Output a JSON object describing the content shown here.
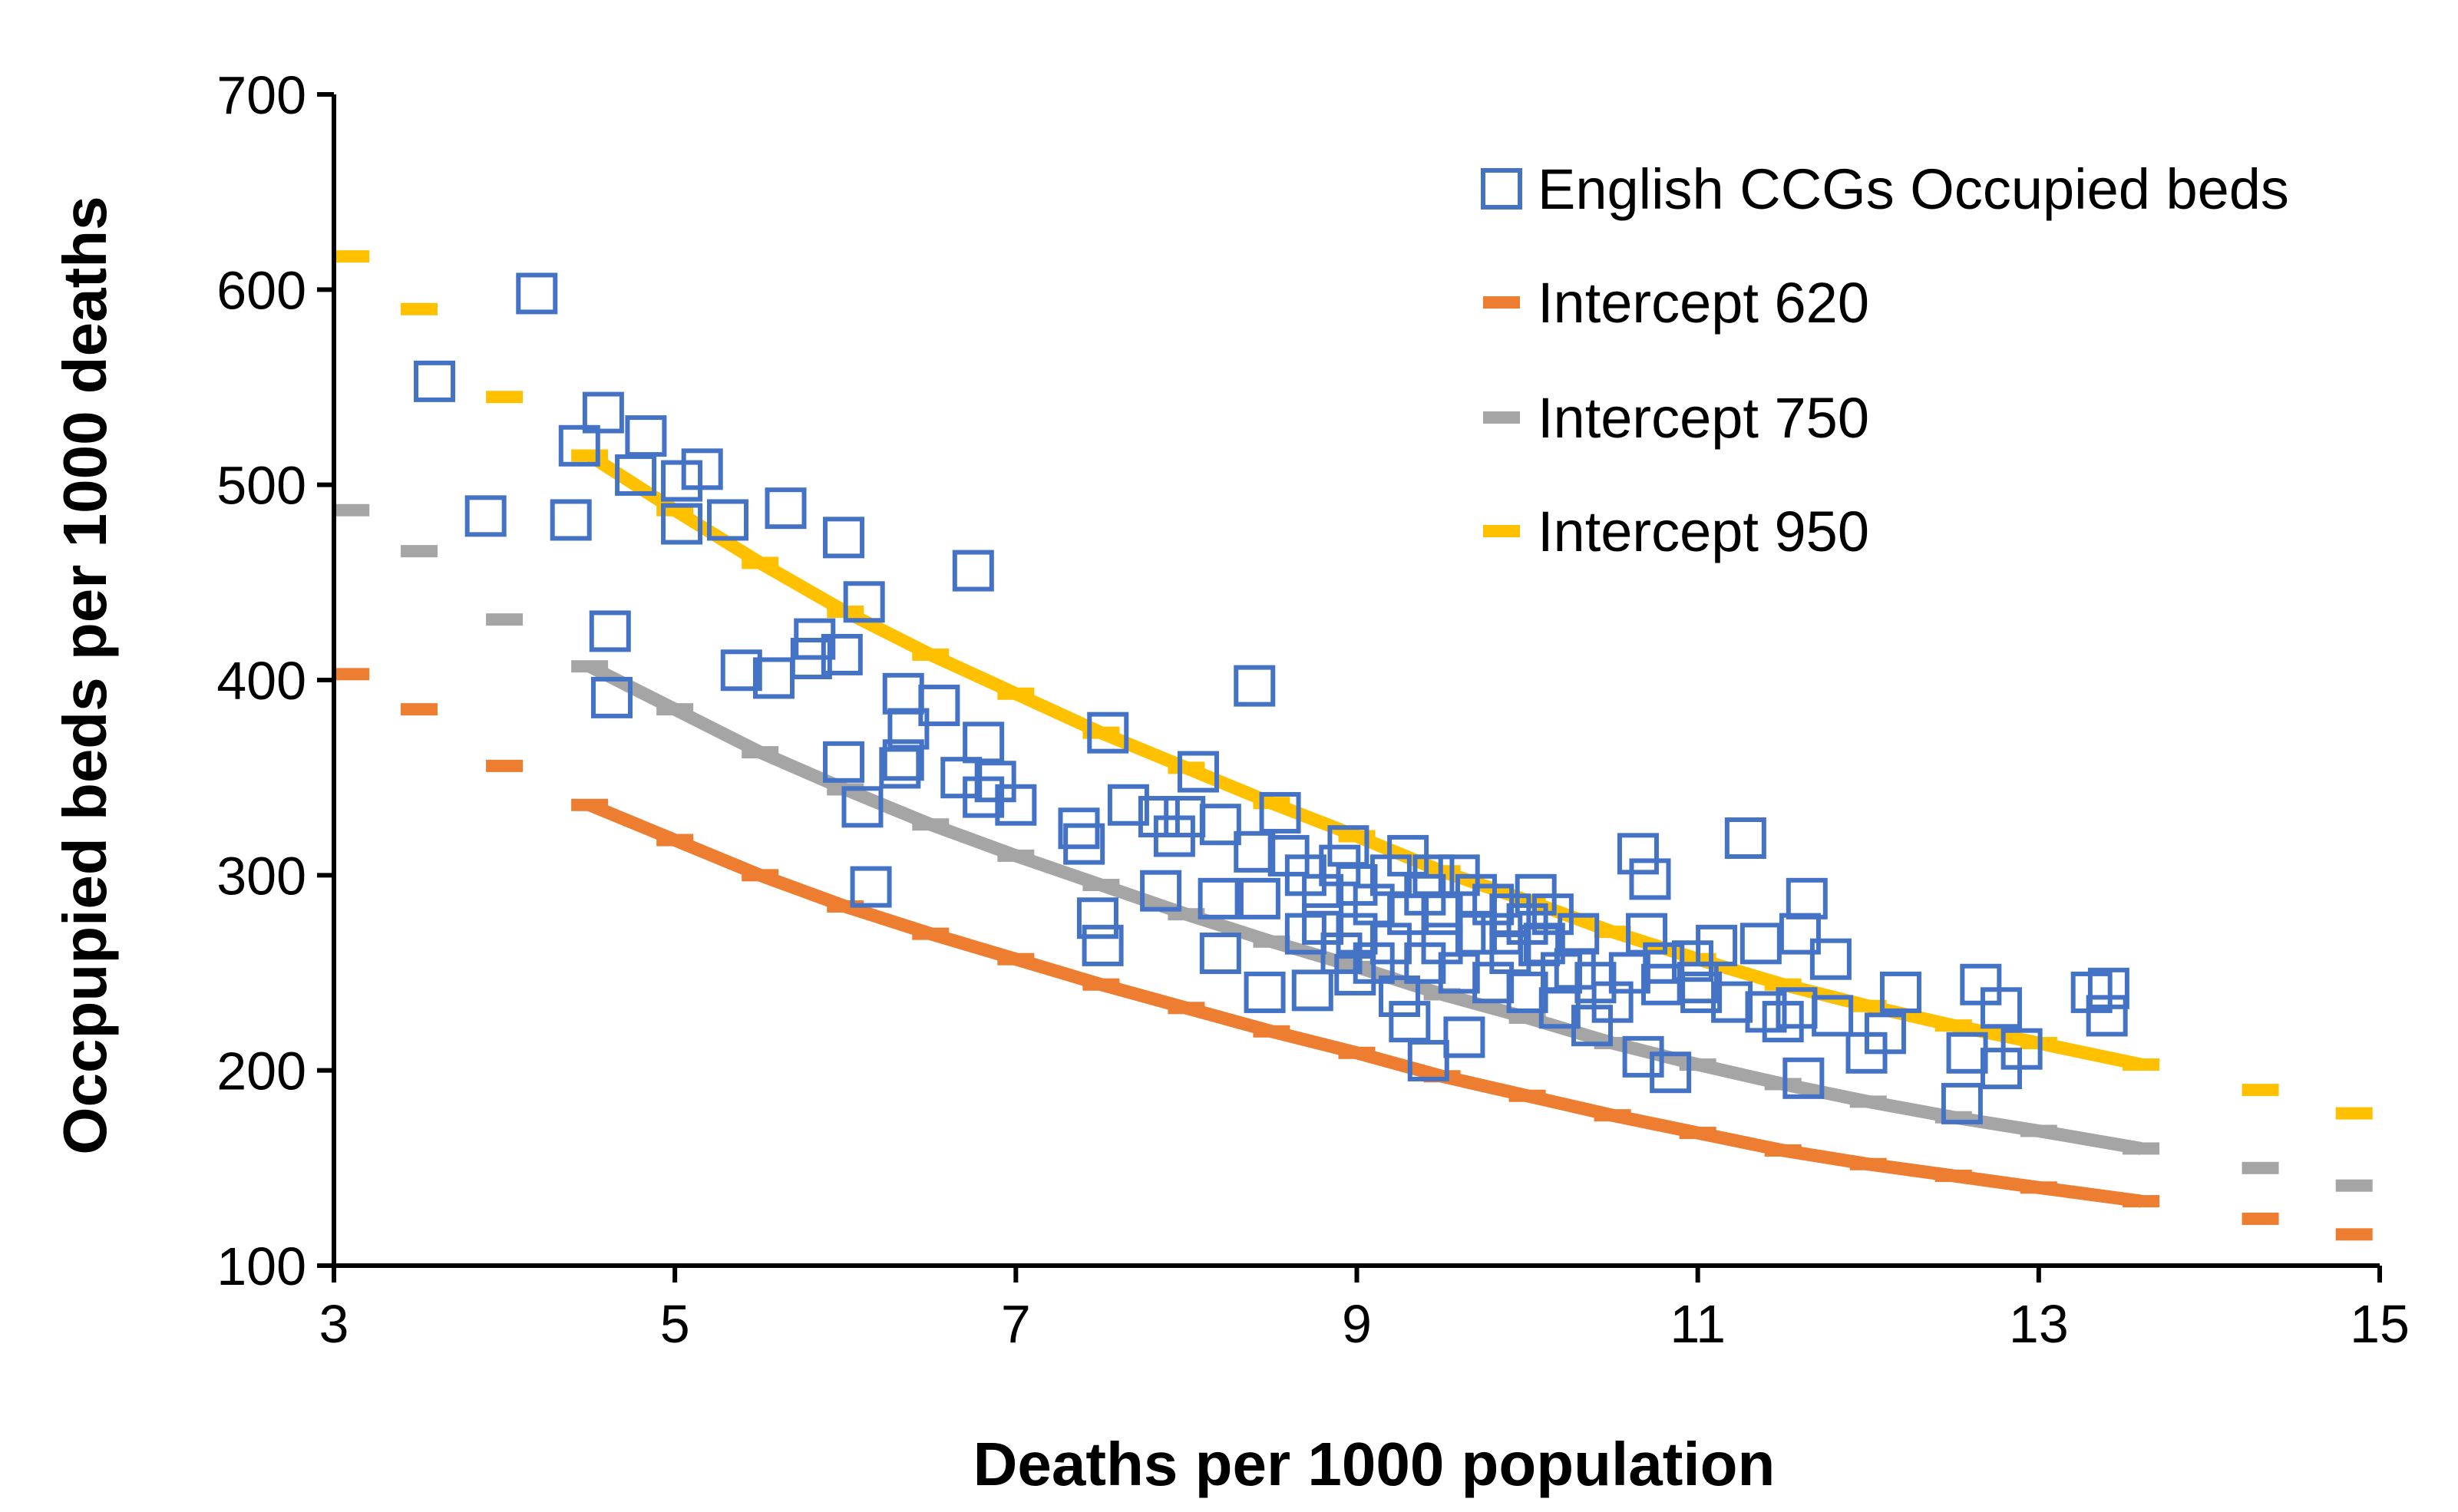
{
  "chart_data": {
    "type": "scatter",
    "title": "",
    "xlabel": "Deaths per 1000 population",
    "ylabel": "Occpupied beds per 1000 deaths",
    "xlim": [
      3,
      15
    ],
    "ylim": [
      100,
      700
    ],
    "xticks": [
      3,
      5,
      7,
      9,
      11,
      13,
      15
    ],
    "yticks": [
      100,
      200,
      300,
      400,
      500,
      600,
      700
    ],
    "grid": false,
    "legend_position": "top-right",
    "colors": {
      "scatter": "#4472C4",
      "i620": "#ED7D31",
      "i750": "#A5A5A5",
      "i950": "#FFC000"
    },
    "scatter": {
      "name": "English CCGs Occupied beds",
      "points": [
        [
          4.19,
          598
        ],
        [
          3.59,
          553
        ],
        [
          3.89,
          484
        ],
        [
          4.39,
          482
        ],
        [
          4.44,
          520
        ],
        [
          4.58,
          537
        ],
        [
          4.83,
          525
        ],
        [
          4.77,
          505
        ],
        [
          5.04,
          502
        ],
        [
          5.16,
          508
        ],
        [
          5.04,
          480
        ],
        [
          5.31,
          482
        ],
        [
          5.65,
          488
        ],
        [
          5.99,
          473
        ],
        [
          4.62,
          425
        ],
        [
          4.63,
          391
        ],
        [
          5.39,
          405
        ],
        [
          5.58,
          401
        ],
        [
          5.82,
          421
        ],
        [
          5.8,
          411
        ],
        [
          5.98,
          413
        ],
        [
          6.11,
          440
        ],
        [
          6.75,
          456
        ],
        [
          6.34,
          393
        ],
        [
          6.55,
          387
        ],
        [
          6.37,
          375
        ],
        [
          6.34,
          359
        ],
        [
          6.32,
          355
        ],
        [
          6.68,
          350
        ],
        [
          6.81,
          368
        ],
        [
          6.88,
          348
        ],
        [
          6.81,
          340
        ],
        [
          7.0,
          336
        ],
        [
          5.99,
          358
        ],
        [
          6.1,
          335
        ],
        [
          6.15,
          294
        ],
        [
          7.37,
          324
        ],
        [
          7.4,
          316
        ],
        [
          7.48,
          278
        ],
        [
          7.51,
          264
        ],
        [
          7.54,
          373
        ],
        [
          7.66,
          336
        ],
        [
          7.84,
          330
        ],
        [
          8.07,
          353
        ],
        [
          7.99,
          330
        ],
        [
          7.93,
          320
        ],
        [
          7.85,
          292
        ],
        [
          8.2,
          326
        ],
        [
          8.19,
          288
        ],
        [
          8.2,
          260
        ],
        [
          8.4,
          397
        ],
        [
          8.55,
          332
        ],
        [
          8.4,
          312
        ],
        [
          8.43,
          288
        ],
        [
          8.46,
          240
        ],
        [
          10.65,
          311
        ],
        [
          10.72,
          298
        ],
        [
          11.28,
          319
        ],
        [
          11.37,
          265
        ],
        [
          11.64,
          288
        ],
        [
          11.78,
          257
        ],
        [
          11.6,
          270
        ],
        [
          11.58,
          232
        ],
        [
          11.62,
          196
        ],
        [
          11.99,
          209
        ],
        [
          12.19,
          240
        ],
        [
          12.1,
          219
        ],
        [
          12.66,
          244
        ],
        [
          12.78,
          232
        ],
        [
          12.58,
          209
        ],
        [
          12.55,
          183
        ],
        [
          12.78,
          201
        ],
        [
          12.9,
          211
        ],
        [
          13.31,
          240
        ],
        [
          13.4,
          228
        ],
        [
          13.41,
          242
        ],
        [
          11.79,
          228
        ],
        [
          10.84,
          199
        ],
        [
          10.68,
          207
        ],
        [
          10.79,
          244
        ],
        [
          11.02,
          240
        ],
        [
          11.11,
          264
        ],
        [
          10.97,
          256
        ],
        [
          10.38,
          223
        ],
        [
          10.19,
          232
        ],
        [
          10.07,
          264
        ],
        [
          10.28,
          252
        ],
        [
          9.42,
          205
        ],
        [
          9.63,
          217
        ],
        [
          9.31,
          225
        ],
        [
          9.25,
          238
        ],
        [
          8.99,
          249
        ],
        [
          8.74,
          241
        ],
        [
          8.91,
          260
        ],
        [
          8.7,
          300
        ],
        [
          8.8,
          290
        ],
        [
          8.9,
          305
        ],
        [
          9.0,
          295
        ],
        [
          9.1,
          285
        ],
        [
          9.2,
          300
        ],
        [
          9.3,
          310
        ],
        [
          9.4,
          290
        ],
        [
          9.5,
          280
        ],
        [
          9.6,
          300
        ],
        [
          9.7,
          270
        ],
        [
          9.8,
          285
        ],
        [
          9.9,
          260
        ],
        [
          10.0,
          275
        ],
        [
          10.1,
          265
        ],
        [
          10.2,
          250
        ],
        [
          10.3,
          270
        ],
        [
          9.0,
          270
        ],
        [
          9.2,
          265
        ],
        [
          9.4,
          255
        ],
        [
          9.6,
          250
        ],
        [
          9.8,
          245
        ],
        [
          10.0,
          240
        ],
        [
          8.6,
          310
        ],
        [
          8.8,
          275
        ],
        [
          9.1,
          255
        ],
        [
          9.5,
          265
        ],
        [
          9.9,
          280
        ],
        [
          10.4,
          245
        ],
        [
          10.6,
          250
        ],
        [
          10.8,
          255
        ],
        [
          11.0,
          245
        ],
        [
          11.2,
          235
        ],
        [
          11.4,
          230
        ],
        [
          11.5,
          225
        ],
        [
          10.5,
          235
        ],
        [
          9.3,
          280
        ],
        [
          9.7,
          290
        ],
        [
          8.95,
          315
        ],
        [
          9.45,
          300
        ],
        [
          10.05,
          290
        ],
        [
          8.7,
          270
        ],
        [
          10.7,
          270
        ],
        [
          9.85,
          270
        ],
        [
          10.15,
          280
        ]
      ]
    },
    "x": [
      3.1,
      3.5,
      4,
      4.5,
      5,
      5.5,
      6,
      6.5,
      7,
      7.5,
      8,
      8.5,
      9,
      9.5,
      10,
      10.5,
      11,
      11.5,
      12,
      12.5,
      13,
      13.6,
      14.3,
      14.85
    ],
    "series": [
      {
        "key": "i620",
        "name": "Intercept 620",
        "values": [
          403,
          385,
          356,
          336,
          318,
          300,
          284,
          270,
          257,
          244,
          232,
          220,
          209,
          197,
          187,
          177,
          168,
          159,
          152,
          146,
          140,
          133,
          124,
          116
        ]
      },
      {
        "key": "i750",
        "name": "Intercept 750",
        "values": [
          487,
          466,
          431,
          407,
          385,
          363,
          344,
          326,
          310,
          295,
          280,
          266,
          253,
          239,
          227,
          214,
          203,
          193,
          184,
          176,
          169,
          160,
          150,
          141
        ]
      },
      {
        "key": "i950",
        "name": "Intercept 950",
        "values": [
          617,
          590,
          545,
          515,
          487,
          460,
          435,
          413,
          393,
          373,
          355,
          337,
          320,
          302,
          287,
          271,
          257,
          244,
          233,
          223,
          214,
          203,
          190,
          178
        ]
      }
    ]
  }
}
